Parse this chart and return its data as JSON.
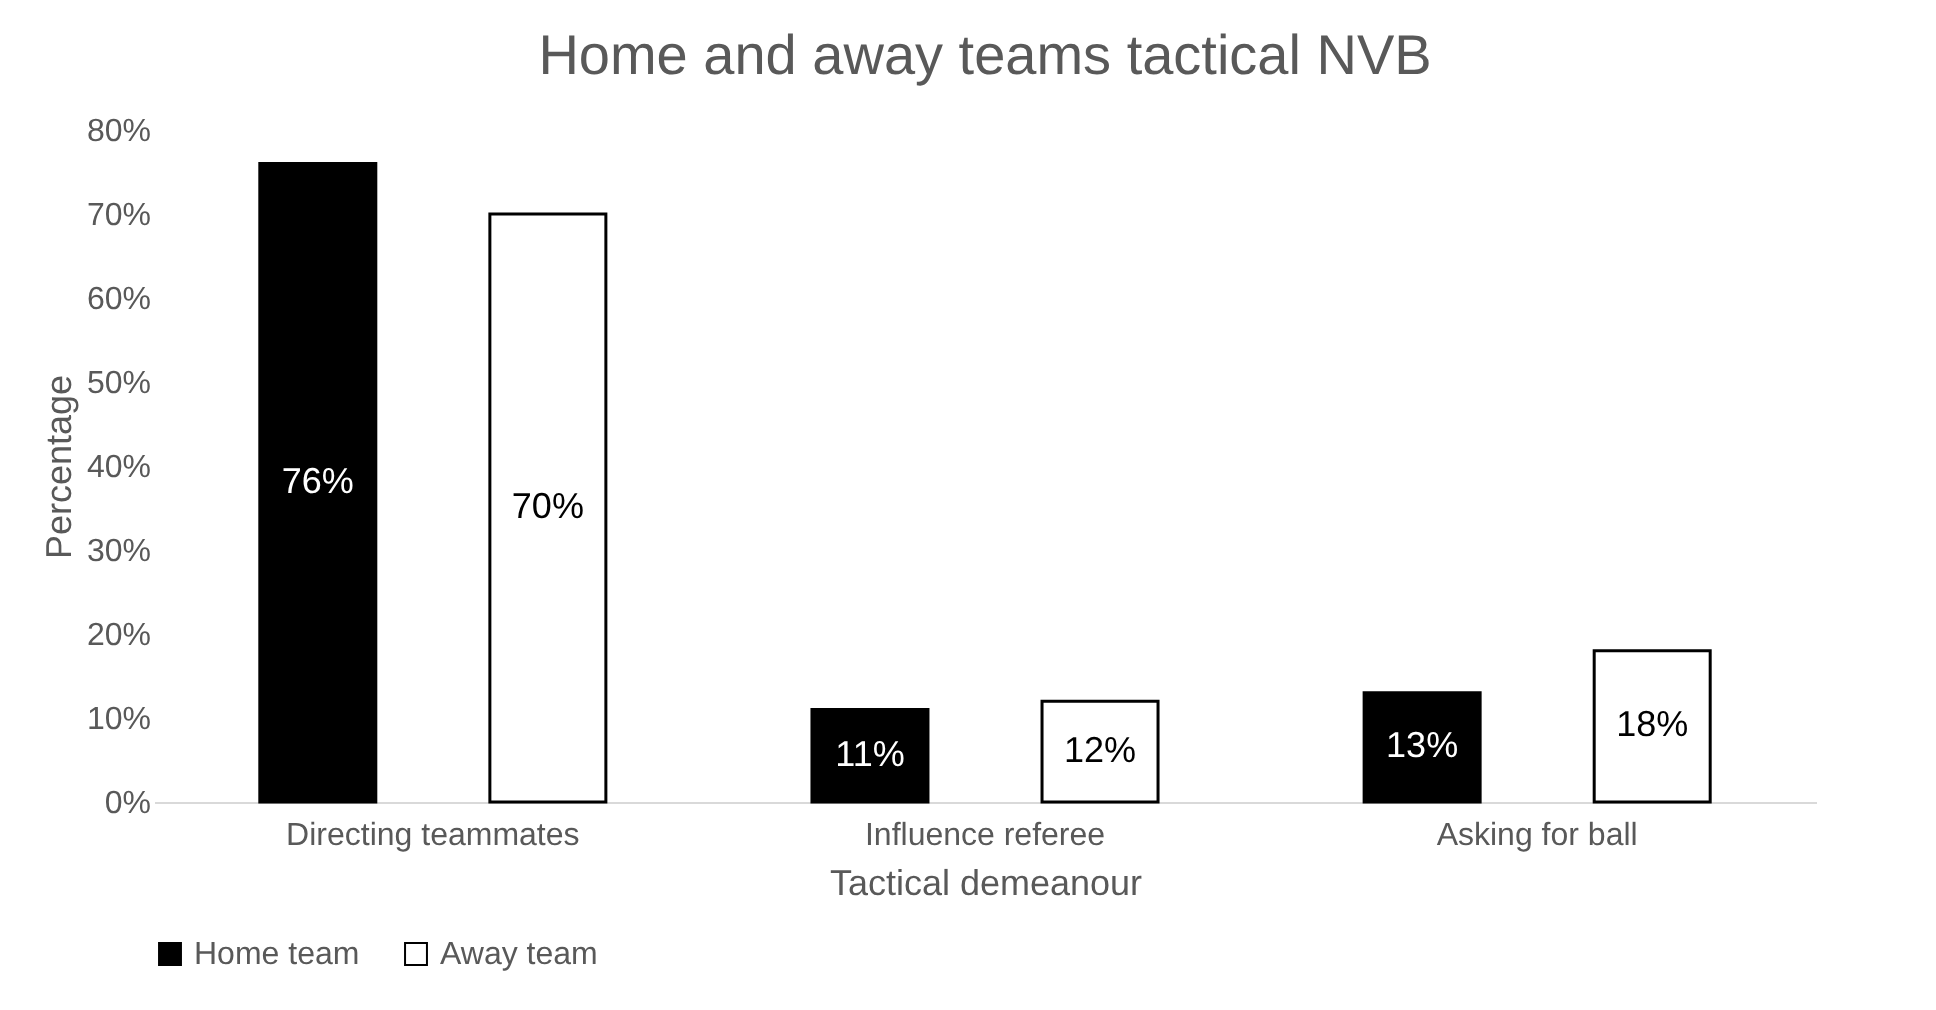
{
  "chart_data": {
    "type": "bar",
    "title": "Home and away teams tactical NVB",
    "xlabel": "Tactical demeanour",
    "ylabel": "Percentage",
    "categories": [
      "Directing teammates",
      "Influence referee",
      "Asking for ball"
    ],
    "series": [
      {
        "name": "Home team",
        "color": "#000000",
        "values": [
          76,
          11,
          13
        ],
        "value_labels": [
          "76%",
          "11%",
          "13%"
        ]
      },
      {
        "name": "Away team",
        "color": "#ffffff",
        "values": [
          70,
          12,
          18
        ],
        "value_labels": [
          "70%",
          "12%",
          "18%"
        ]
      }
    ],
    "ylim": [
      0,
      80
    ],
    "yticks": [
      {
        "value": 0,
        "label": "0%"
      },
      {
        "value": 10,
        "label": "10%"
      },
      {
        "value": 20,
        "label": "20%"
      },
      {
        "value": 30,
        "label": "30%"
      },
      {
        "value": 40,
        "label": "40%"
      },
      {
        "value": 50,
        "label": "50%"
      },
      {
        "value": 60,
        "label": "60%"
      },
      {
        "value": 70,
        "label": "70%"
      },
      {
        "value": 80,
        "label": "80%"
      }
    ],
    "grid": false,
    "legend": "bottom"
  }
}
